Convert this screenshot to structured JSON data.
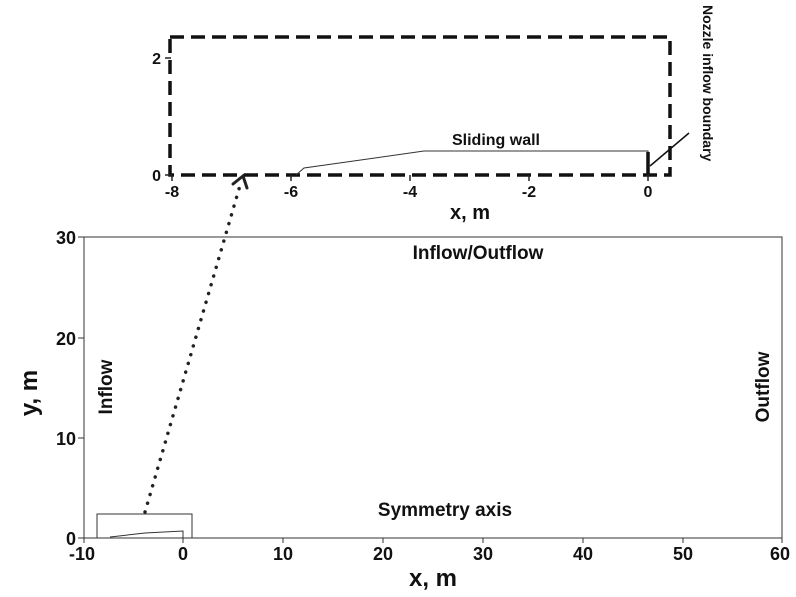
{
  "main_plot": {
    "xlabel": "x, m",
    "ylabel": "y, m",
    "x_ticks": [
      "-10",
      "0",
      "10",
      "20",
      "30",
      "40",
      "50",
      "60"
    ],
    "y_ticks": [
      "0",
      "10",
      "20",
      "30"
    ],
    "xlim": [
      -10,
      60
    ],
    "ylim": [
      0,
      30
    ],
    "boundary_labels": {
      "top": "Inflow/Outflow",
      "left": "Inflow",
      "right": "Outflow",
      "bottom": "Symmetry axis"
    }
  },
  "inset_plot": {
    "xlabel": "x, m",
    "x_ticks": [
      "-8",
      "-6",
      "-4",
      "-2",
      "0"
    ],
    "y_ticks": [
      "0",
      "2"
    ],
    "xlim": [
      -8,
      0
    ],
    "annotations": {
      "sliding_wall": "Sliding wall",
      "nozzle_inflow": "Nozzle inflow boundary"
    }
  }
}
